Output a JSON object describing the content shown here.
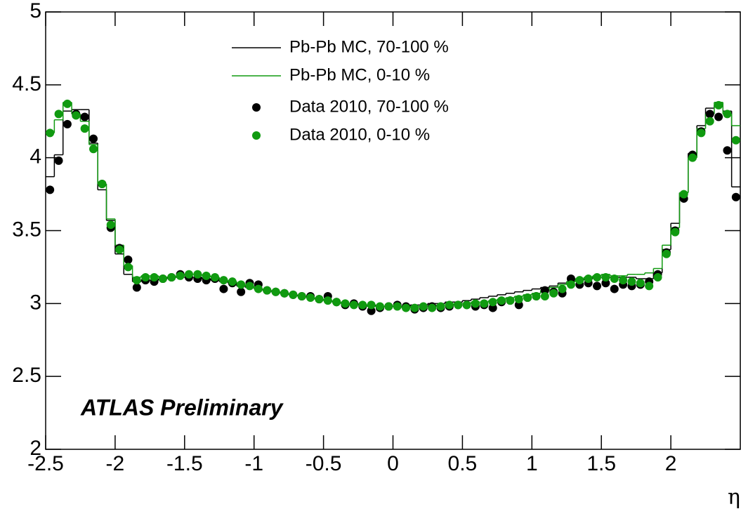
{
  "chart_data": {
    "type": "line",
    "annotation": "ATLAS Preliminary",
    "x_label": "η",
    "xlim": [
      -2.5,
      2.5
    ],
    "ylim": [
      2,
      5
    ],
    "xticks": [
      -2.5,
      -2,
      -1.5,
      -1,
      -0.5,
      0,
      0.5,
      1,
      1.5,
      2
    ],
    "yticks": [
      2,
      2.5,
      3,
      3.5,
      4,
      4.5,
      5
    ],
    "x": [
      -2.46875,
      -2.40625,
      -2.34375,
      -2.28125,
      -2.21875,
      -2.15625,
      -2.09375,
      -2.03125,
      -1.96875,
      -1.90625,
      -1.84375,
      -1.78125,
      -1.71875,
      -1.65625,
      -1.59375,
      -1.53125,
      -1.46875,
      -1.40625,
      -1.34375,
      -1.28125,
      -1.21875,
      -1.15625,
      -1.09375,
      -1.03125,
      -0.96875,
      -0.90625,
      -0.84375,
      -0.78125,
      -0.71875,
      -0.65625,
      -0.59375,
      -0.53125,
      -0.46875,
      -0.40625,
      -0.34375,
      -0.28125,
      -0.21875,
      -0.15625,
      -0.09375,
      -0.03125,
      0.03125,
      0.09375,
      0.15625,
      0.21875,
      0.28125,
      0.34375,
      0.40625,
      0.46875,
      0.53125,
      0.59375,
      0.65625,
      0.71875,
      0.78125,
      0.84375,
      0.90625,
      0.96875,
      1.03125,
      1.09375,
      1.15625,
      1.21875,
      1.28125,
      1.34375,
      1.40625,
      1.46875,
      1.53125,
      1.59375,
      1.65625,
      1.71875,
      1.78125,
      1.84375,
      1.90625,
      1.96875,
      2.03125,
      2.09375,
      2.15625,
      2.21875,
      2.28125,
      2.34375,
      2.40625,
      2.46875
    ],
    "series": [
      {
        "name": "Pb-Pb MC, 70-100 %",
        "color": "#000000",
        "style": "step",
        "values": [
          3.87,
          4.02,
          4.32,
          4.33,
          4.33,
          4.1,
          3.78,
          3.57,
          3.34,
          3.2,
          3.15,
          3.16,
          3.16,
          3.17,
          3.18,
          3.18,
          3.18,
          3.18,
          3.17,
          3.16,
          3.15,
          3.14,
          3.12,
          3.11,
          3.1,
          3.09,
          3.08,
          3.07,
          3.06,
          3.05,
          3.04,
          3.03,
          3.02,
          3.01,
          3.0,
          3.0,
          2.99,
          2.99,
          2.98,
          2.98,
          2.98,
          2.98,
          2.99,
          2.99,
          3.0,
          3.0,
          3.01,
          3.01,
          3.02,
          3.03,
          3.04,
          3.05,
          3.06,
          3.07,
          3.08,
          3.09,
          3.1,
          3.11,
          3.12,
          3.14,
          3.15,
          3.16,
          3.17,
          3.18,
          3.18,
          3.18,
          3.18,
          3.18,
          3.17,
          3.17,
          3.21,
          3.37,
          3.55,
          3.76,
          4.03,
          4.22,
          4.34,
          4.36,
          4.32,
          3.8
        ]
      },
      {
        "name": "Pb-Pb MC, 0-10 %",
        "color": "#109a10",
        "style": "step",
        "values": [
          4.17,
          4.26,
          4.38,
          4.3,
          4.25,
          4.09,
          3.82,
          3.58,
          3.4,
          3.26,
          3.18,
          3.19,
          3.19,
          3.18,
          3.18,
          3.19,
          3.2,
          3.2,
          3.19,
          3.18,
          3.16,
          3.15,
          3.13,
          3.12,
          3.1,
          3.09,
          3.08,
          3.07,
          3.06,
          3.05,
          3.04,
          3.03,
          3.02,
          3.01,
          3.0,
          2.99,
          2.99,
          2.98,
          2.98,
          2.98,
          2.98,
          2.97,
          2.98,
          2.98,
          2.98,
          2.99,
          2.99,
          3.0,
          3.0,
          3.01,
          3.01,
          3.02,
          3.03,
          3.04,
          3.05,
          3.06,
          3.07,
          3.09,
          3.11,
          3.13,
          3.15,
          3.17,
          3.18,
          3.19,
          3.2,
          3.19,
          3.19,
          3.2,
          3.2,
          3.21,
          3.24,
          3.4,
          3.52,
          3.76,
          4.0,
          4.2,
          4.3,
          4.38,
          4.3,
          4.22
        ]
      },
      {
        "name": "Data 2010, 70-100 %",
        "color": "#000000",
        "style": "points",
        "values": [
          3.78,
          3.98,
          4.23,
          4.3,
          4.28,
          4.13,
          3.82,
          3.52,
          3.38,
          3.3,
          3.11,
          3.16,
          3.15,
          3.17,
          3.18,
          3.2,
          3.18,
          3.17,
          3.16,
          3.17,
          3.1,
          3.14,
          3.08,
          3.14,
          3.13,
          3.09,
          3.08,
          3.07,
          3.06,
          3.05,
          3.05,
          3.03,
          3.05,
          3.01,
          2.99,
          3.0,
          2.98,
          2.95,
          2.97,
          2.98,
          2.99,
          2.98,
          2.96,
          2.97,
          2.98,
          2.97,
          2.98,
          2.99,
          2.99,
          2.98,
          2.99,
          2.97,
          3.01,
          3.02,
          2.99,
          3.04,
          3.05,
          3.09,
          3.08,
          3.07,
          3.17,
          3.13,
          3.14,
          3.12,
          3.14,
          3.1,
          3.13,
          3.12,
          3.13,
          3.15,
          3.2,
          3.35,
          3.5,
          3.72,
          4.02,
          4.18,
          4.3,
          4.28,
          4.05,
          3.73
        ]
      },
      {
        "name": "Data 2010, 0-10 %",
        "color": "#109a10",
        "style": "points",
        "values": [
          4.17,
          4.3,
          4.37,
          4.29,
          4.2,
          4.06,
          3.82,
          3.54,
          3.37,
          3.25,
          3.16,
          3.18,
          3.18,
          3.17,
          3.18,
          3.19,
          3.2,
          3.2,
          3.19,
          3.18,
          3.16,
          3.15,
          3.13,
          3.12,
          3.1,
          3.09,
          3.08,
          3.07,
          3.06,
          3.05,
          3.04,
          3.03,
          3.02,
          3.01,
          3.0,
          2.99,
          2.99,
          2.99,
          2.98,
          2.98,
          2.98,
          2.97,
          2.97,
          2.98,
          2.97,
          2.98,
          2.99,
          2.99,
          2.99,
          3.0,
          3.0,
          3.01,
          3.02,
          3.02,
          3.03,
          3.04,
          3.05,
          3.05,
          3.07,
          3.1,
          3.13,
          3.16,
          3.17,
          3.18,
          3.18,
          3.17,
          3.16,
          3.15,
          3.14,
          3.12,
          3.18,
          3.34,
          3.49,
          3.75,
          4.0,
          4.17,
          4.25,
          4.36,
          4.3,
          4.12
        ]
      }
    ]
  }
}
